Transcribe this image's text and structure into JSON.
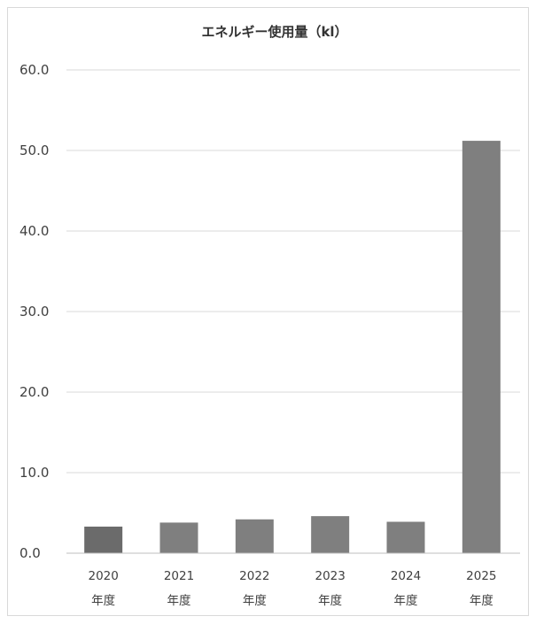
{
  "chart_data": {
    "type": "bar",
    "title": "エネルギー使用量（kl）",
    "categories": [
      {
        "year": "2020",
        "suffix": "年度"
      },
      {
        "year": "2021",
        "suffix": "年度"
      },
      {
        "year": "2022",
        "suffix": "年度"
      },
      {
        "year": "2023",
        "suffix": "年度"
      },
      {
        "year": "2024",
        "suffix": "年度"
      },
      {
        "year": "2025",
        "suffix": "年度"
      }
    ],
    "values": [
      3.3,
      3.8,
      4.2,
      4.6,
      3.9,
      51.2
    ],
    "ylim": [
      0,
      60
    ],
    "yticks": [
      "0.0",
      "10.0",
      "20.0",
      "30.0",
      "40.0",
      "50.0",
      "60.0"
    ],
    "ytick_values": [
      0,
      10,
      20,
      30,
      40,
      50,
      60
    ],
    "grid": true,
    "legend": "none",
    "colors": {
      "first_bar": "#6b6b6b",
      "bar": "#7f7f7f"
    }
  }
}
